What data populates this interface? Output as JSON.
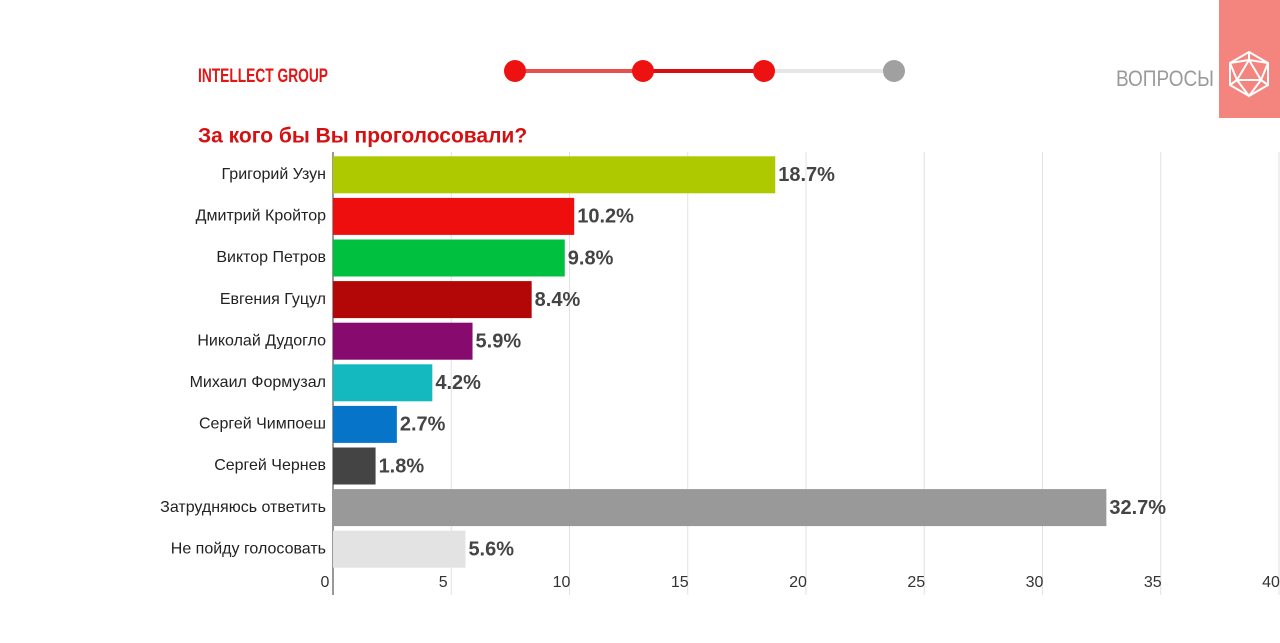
{
  "header": {
    "brand": "INTELLECT GROUP",
    "section": "ВОПРОСЫ"
  },
  "chart_data": {
    "type": "barh",
    "title": "За кого бы Вы проголосовали?",
    "categories": [
      "Григорий Узун",
      "Дмитрий Кройтор",
      "Виктор Петров",
      "Евгения Гуцул",
      "Николай Дудогло",
      "Михаил Формузал",
      "Сергей Чимпоеш",
      "Сергей Чернев",
      "Затрудняюсь ответить",
      "Не пойду голосовать"
    ],
    "values": [
      18.7,
      10.2,
      9.8,
      8.4,
      5.9,
      4.2,
      2.7,
      1.8,
      32.7,
      5.6
    ],
    "value_labels": [
      "18.7%",
      "10.2%",
      "9.8%",
      "8.4%",
      "5.9%",
      "4.2%",
      "2.7%",
      "1.8%",
      "32.7%",
      "5.6%"
    ],
    "colors": [
      "#aec900",
      "#ee0e0e",
      "#00c040",
      "#b30606",
      "#870a6e",
      "#14b9c0",
      "#0675c9",
      "#444444",
      "#999999",
      "#e3e3e3"
    ],
    "xlim": [
      0,
      40
    ],
    "xticks": [
      0,
      5,
      10,
      15,
      20,
      25,
      30,
      35,
      40
    ],
    "grid": true
  }
}
